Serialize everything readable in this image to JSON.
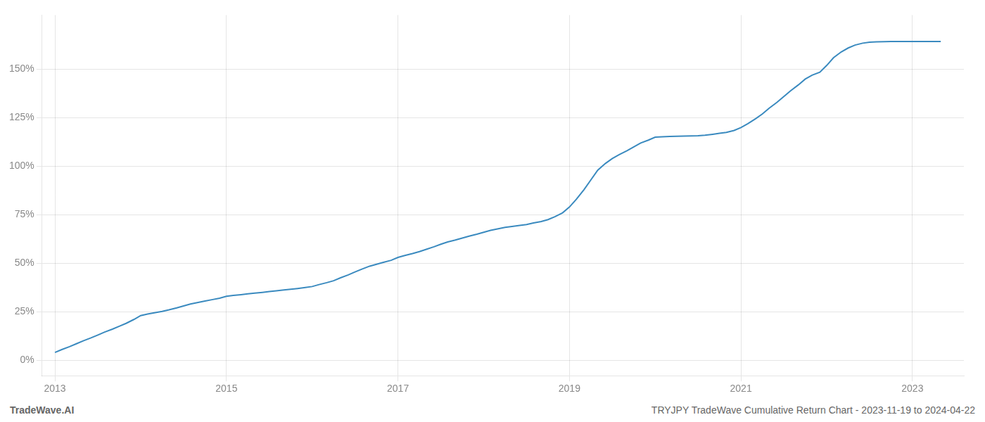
{
  "chart_data": {
    "type": "line",
    "title": "TRYJPY TradeWave Cumulative Return Chart - 2023-11-19 to 2024-04-22",
    "annotations": [
      "TradeWave.AI"
    ],
    "color": "#3a8abf",
    "grid": true,
    "xlim": [
      2012.85,
      2023.6
    ],
    "xticks": [
      2013,
      2015,
      2017,
      2019,
      2021,
      2023
    ],
    "ylim": [
      -8,
      178
    ],
    "yticks": [
      {
        "value": 0,
        "label": "0%"
      },
      {
        "value": 25,
        "label": "25%"
      },
      {
        "value": 50,
        "label": "50%"
      },
      {
        "value": 75,
        "label": "75%"
      },
      {
        "value": 100,
        "label": "100%"
      },
      {
        "value": 125,
        "label": "125%"
      },
      {
        "value": 150,
        "label": "150%"
      }
    ],
    "x": [
      2013.0,
      2013.08,
      2013.17,
      2013.25,
      2013.33,
      2013.42,
      2013.5,
      2013.58,
      2013.67,
      2013.75,
      2013.83,
      2013.92,
      2014.0,
      2014.08,
      2014.17,
      2014.25,
      2014.33,
      2014.42,
      2014.5,
      2014.58,
      2014.67,
      2014.75,
      2014.83,
      2014.92,
      2015.0,
      2015.08,
      2015.17,
      2015.25,
      2015.33,
      2015.42,
      2015.5,
      2015.58,
      2015.67,
      2015.75,
      2015.83,
      2015.92,
      2016.0,
      2016.08,
      2016.17,
      2016.25,
      2016.33,
      2016.42,
      2016.5,
      2016.58,
      2016.67,
      2016.75,
      2016.83,
      2016.92,
      2017.0,
      2017.08,
      2017.17,
      2017.25,
      2017.33,
      2017.42,
      2017.5,
      2017.58,
      2017.67,
      2017.75,
      2017.83,
      2017.92,
      2018.0,
      2018.08,
      2018.17,
      2018.25,
      2018.33,
      2018.42,
      2018.5,
      2018.58,
      2018.67,
      2018.75,
      2018.83,
      2018.92,
      2019.0,
      2019.08,
      2019.17,
      2019.25,
      2019.33,
      2019.42,
      2019.5,
      2019.58,
      2019.67,
      2019.75,
      2019.83,
      2019.92,
      2020.0,
      2020.08,
      2020.17,
      2020.25,
      2020.33,
      2020.42,
      2020.5,
      2020.58,
      2020.67,
      2020.75,
      2020.83,
      2020.92,
      2021.0,
      2021.08,
      2021.17,
      2021.25,
      2021.33,
      2021.42,
      2021.5,
      2021.58,
      2021.67,
      2021.75,
      2021.83,
      2021.92,
      2022.0,
      2022.08,
      2022.17,
      2022.25,
      2022.33,
      2022.42,
      2022.5,
      2022.58,
      2022.67,
      2022.75,
      2022.83,
      2022.92,
      2023.0,
      2023.08,
      2023.17,
      2023.25,
      2023.33
    ],
    "values": [
      4.0,
      5.5,
      7.0,
      8.5,
      10.0,
      11.5,
      13.0,
      14.5,
      16.0,
      17.5,
      19.0,
      21.0,
      23.0,
      23.8,
      24.5,
      25.2,
      26.0,
      27.0,
      28.0,
      29.0,
      29.8,
      30.5,
      31.2,
      32.0,
      33.0,
      33.4,
      33.8,
      34.2,
      34.6,
      35.0,
      35.4,
      35.8,
      36.2,
      36.6,
      37.0,
      37.5,
      38.0,
      39.0,
      40.0,
      41.0,
      42.5,
      44.0,
      45.5,
      47.0,
      48.5,
      49.5,
      50.5,
      51.5,
      53.0,
      54.0,
      55.0,
      56.0,
      57.2,
      58.5,
      59.8,
      61.0,
      62.0,
      63.0,
      64.0,
      65.0,
      66.0,
      67.0,
      67.8,
      68.5,
      69.0,
      69.5,
      70.0,
      70.8,
      71.5,
      72.5,
      74.0,
      76.0,
      79.0,
      83.0,
      88.0,
      93.0,
      98.0,
      101.5,
      104.0,
      106.0,
      108.0,
      110.0,
      112.0,
      113.5,
      115.0,
      115.2,
      115.4,
      115.5,
      115.6,
      115.7,
      115.8,
      116.0,
      116.5,
      117.0,
      117.5,
      118.5,
      120.0,
      122.0,
      124.5,
      127.0,
      130.0,
      133.0,
      136.0,
      139.0,
      142.0,
      145.0,
      147.0,
      148.5,
      152.0,
      156.0,
      159.0,
      161.0,
      162.5,
      163.5,
      164.0,
      164.2,
      164.3,
      164.4,
      164.4,
      164.4,
      164.4,
      164.4,
      164.4,
      164.4,
      164.4
    ]
  }
}
